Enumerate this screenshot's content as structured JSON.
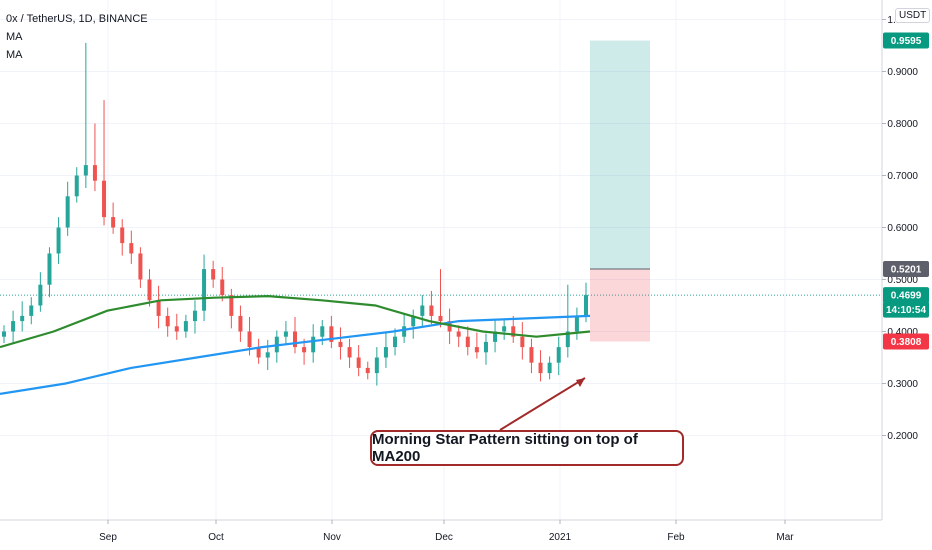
{
  "legend": {
    "title": "0x / TetherUS, 1D, BINANCE",
    "indicators": [
      "MA",
      "MA"
    ]
  },
  "currency": "USDT",
  "annotation": "Morning Star Pattern sitting on top of MA200",
  "price_tags": [
    {
      "label": "0.9595",
      "value": 0.9595,
      "color": "#089981"
    },
    {
      "label": "0.5201",
      "value": 0.5201,
      "color": "#5d606b"
    },
    {
      "label": "0.4699",
      "value": 0.4699,
      "color": "#089981"
    },
    {
      "label": "14:10:54",
      "value": 0.444,
      "color": "#089981"
    },
    {
      "label": "0.3808",
      "value": 0.3808,
      "color": "#f23645"
    }
  ],
  "chart_data": {
    "type": "candlestick",
    "title": "0x / TetherUS, 1D, BINANCE",
    "x_ticks": [
      "Sep",
      "Oct",
      "Nov",
      "Dec",
      "2021",
      "Feb",
      "Mar"
    ],
    "y_ticks": [
      "1.0000",
      "0.9000",
      "0.8000",
      "0.7000",
      "0.6000",
      "0.5000",
      "0.4000",
      "0.3000",
      "0.2000"
    ],
    "ylim": [
      0.09,
      1.12
    ],
    "current_price": 0.4699,
    "target": 0.9595,
    "entry": 0.5201,
    "stop": 0.3808,
    "colors": {
      "up": "#26a69a",
      "down": "#ef5350",
      "ma_fast": "#2e8b2e",
      "ma_slow": "#2196f3"
    },
    "series": [
      {
        "name": "MA",
        "note": "green",
        "values": [
          0.37,
          0.4,
          0.44,
          0.46,
          0.465,
          0.468,
          0.46,
          0.45,
          0.42,
          0.4,
          0.39,
          0.4
        ]
      },
      {
        "name": "MA",
        "note": "blue",
        "values": [
          0.28,
          0.3,
          0.33,
          0.35,
          0.37,
          0.385,
          0.4,
          0.42,
          0.425,
          0.43
        ]
      }
    ],
    "closes": [
      0.4,
      0.42,
      0.43,
      0.45,
      0.49,
      0.55,
      0.6,
      0.66,
      0.7,
      0.72,
      0.69,
      0.62,
      0.6,
      0.57,
      0.55,
      0.5,
      0.46,
      0.43,
      0.41,
      0.4,
      0.42,
      0.44,
      0.52,
      0.5,
      0.47,
      0.43,
      0.4,
      0.37,
      0.35,
      0.36,
      0.39,
      0.4,
      0.37,
      0.36,
      0.39,
      0.41,
      0.38,
      0.37,
      0.35,
      0.33,
      0.32,
      0.35,
      0.37,
      0.39,
      0.41,
      0.43,
      0.45,
      0.43,
      0.42,
      0.4,
      0.39,
      0.37,
      0.36,
      0.38,
      0.4,
      0.41,
      0.39,
      0.37,
      0.34,
      0.32,
      0.34,
      0.37,
      0.4,
      0.43,
      0.47
    ]
  }
}
